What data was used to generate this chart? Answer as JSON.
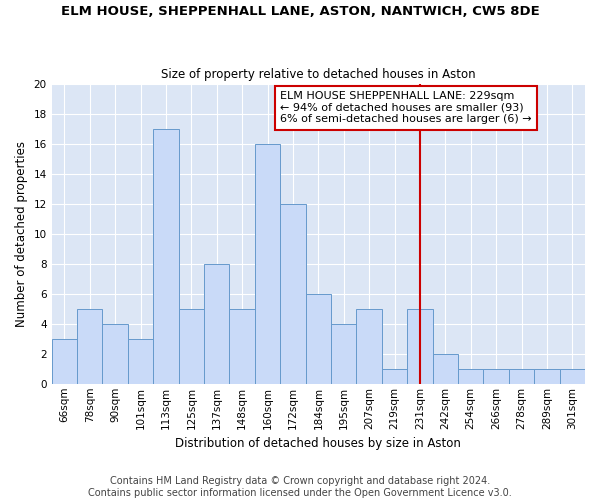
{
  "title": "ELM HOUSE, SHEPPENHALL LANE, ASTON, NANTWICH, CW5 8DE",
  "subtitle": "Size of property relative to detached houses in Aston",
  "xlabel": "Distribution of detached houses by size in Aston",
  "ylabel": "Number of detached properties",
  "categories": [
    "66sqm",
    "78sqm",
    "90sqm",
    "101sqm",
    "113sqm",
    "125sqm",
    "137sqm",
    "148sqm",
    "160sqm",
    "172sqm",
    "184sqm",
    "195sqm",
    "207sqm",
    "219sqm",
    "231sqm",
    "242sqm",
    "254sqm",
    "266sqm",
    "278sqm",
    "289sqm",
    "301sqm"
  ],
  "values": [
    3,
    5,
    4,
    3,
    17,
    5,
    8,
    5,
    16,
    12,
    6,
    4,
    5,
    1,
    5,
    2,
    1,
    1,
    1,
    1,
    1
  ],
  "bar_color": "#c9daf8",
  "bar_edge_color": "#6699cc",
  "vline_x_index": 14,
  "vline_color": "#cc0000",
  "annotation_text": "ELM HOUSE SHEPPENHALL LANE: 229sqm\n← 94% of detached houses are smaller (93)\n6% of semi-detached houses are larger (6) →",
  "annotation_box_edge_color": "#cc0000",
  "ylim": [
    0,
    20
  ],
  "yticks": [
    0,
    2,
    4,
    6,
    8,
    10,
    12,
    14,
    16,
    18,
    20
  ],
  "footer": "Contains HM Land Registry data © Crown copyright and database right 2024.\nContains public sector information licensed under the Open Government Licence v3.0.",
  "bg_color": "#dce6f5",
  "plot_bg_color": "#dce6f5",
  "grid_color": "#ffffff",
  "title_fontsize": 9.5,
  "subtitle_fontsize": 8.5,
  "label_fontsize": 8.5,
  "tick_fontsize": 7.5,
  "footer_fontsize": 7,
  "annotation_fontsize": 8
}
